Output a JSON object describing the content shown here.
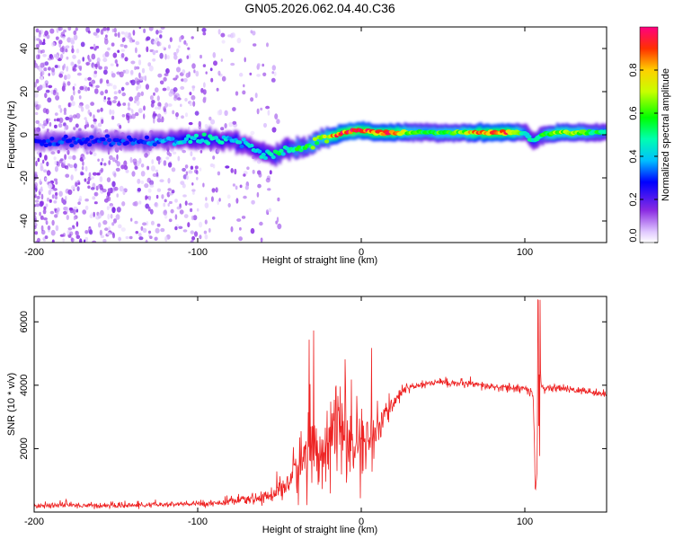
{
  "title": "GN05.2026.062.04.40.C36",
  "chart_data": [
    {
      "type": "heatmap",
      "name": "spectrogram",
      "xlabel": "Height of straight line (km)",
      "ylabel": "Frequency (Hz)",
      "xlim": [
        -200,
        150
      ],
      "ylim": [
        -50,
        50
      ],
      "xticks": [
        -200,
        -100,
        0,
        100
      ],
      "yticks": [
        -40,
        -20,
        0,
        20,
        40
      ],
      "colorbar": {
        "label": "Normalized spectral amplitude",
        "range": [
          0,
          1
        ],
        "ticks": [
          0.0,
          0.2,
          0.4,
          0.6,
          0.8
        ],
        "tick_labels": [
          "0.0",
          "0.2",
          "0.4",
          "0.6",
          "0.8"
        ]
      },
      "ridge": {
        "x": [
          -200,
          -180,
          -160,
          -140,
          -120,
          -100,
          -90,
          -80,
          -70,
          -60,
          -55,
          -50,
          -45,
          -40,
          -35,
          -30,
          -25,
          -20,
          -15,
          -10,
          -5,
          0,
          10,
          20,
          30,
          40,
          50,
          60,
          70,
          80,
          90,
          100,
          105,
          110,
          120,
          130,
          140,
          150
        ],
        "freq": [
          -3,
          -3,
          -3,
          -3,
          -3,
          -2,
          -2,
          -3,
          -5,
          -8,
          -10,
          -8,
          -7,
          -6,
          -6,
          -4,
          -2,
          -1,
          0,
          1,
          2,
          2,
          1,
          1,
          1,
          1,
          1,
          1,
          1,
          1,
          1,
          1,
          -3,
          0,
          1,
          1,
          1,
          1
        ],
        "amplitude": [
          0.3,
          0.3,
          0.3,
          0.3,
          0.35,
          0.45,
          0.45,
          0.4,
          0.4,
          0.45,
          0.45,
          0.5,
          0.45,
          0.55,
          0.5,
          0.6,
          0.6,
          0.7,
          0.85,
          0.9,
          0.95,
          0.9,
          0.85,
          0.85,
          0.6,
          0.55,
          0.6,
          0.6,
          0.8,
          0.9,
          0.85,
          0.5,
          0.45,
          0.5,
          0.7,
          0.65,
          0.55,
          0.5
        ]
      }
    },
    {
      "type": "line",
      "name": "snr",
      "xlabel": "Height of straight line (km)",
      "ylabel": "SNR (10 * v/v)",
      "xlim": [
        -200,
        150
      ],
      "ylim": [
        0,
        6800
      ],
      "xticks": [
        -200,
        -100,
        0,
        100
      ],
      "yticks": [
        2000,
        4000,
        6000
      ],
      "color": "#ee2222",
      "series": [
        {
          "name": "SNR",
          "x": [
            -200,
            -180,
            -160,
            -140,
            -120,
            -100,
            -90,
            -80,
            -70,
            -60,
            -55,
            -50,
            -45,
            -40,
            -35,
            -30,
            -25,
            -20,
            -15,
            -10,
            -5,
            0,
            5,
            10,
            15,
            20,
            25,
            30,
            40,
            50,
            60,
            70,
            80,
            90,
            100,
            105,
            107,
            108,
            110,
            112,
            120,
            130,
            140,
            150
          ],
          "values": [
            200,
            220,
            200,
            210,
            230,
            260,
            280,
            330,
            380,
            450,
            550,
            700,
            900,
            1300,
            1700,
            2000,
            1900,
            2400,
            2700,
            2400,
            2000,
            2100,
            2300,
            2600,
            3000,
            3500,
            3800,
            3950,
            4050,
            4100,
            4050,
            4000,
            3950,
            3900,
            3900,
            3700,
            500,
            6500,
            4000,
            3900,
            3900,
            3850,
            3800,
            3700
          ],
          "noise": [
            70,
            80,
            70,
            70,
            70,
            80,
            80,
            100,
            120,
            150,
            200,
            300,
            500,
            700,
            1100,
            1200,
            1200,
            1100,
            1100,
            1200,
            1000,
            900,
            800,
            600,
            400,
            200,
            150,
            120,
            110,
            110,
            110,
            110,
            110,
            110,
            120,
            150,
            0,
            0,
            120,
            110,
            100,
            100,
            90,
            90
          ]
        }
      ]
    }
  ]
}
